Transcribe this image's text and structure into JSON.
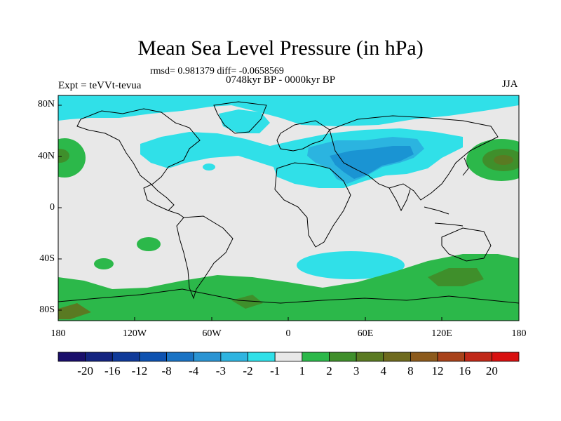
{
  "title": "Mean Sea Level Pressure (in hPa)",
  "stats": "rmsd= 0.981379 diff= -0.0658569",
  "period": "0748kyr BP - 0000kyr BP",
  "experiment": "Expt = teVVt-tevua",
  "season": "JJA",
  "lon_ticks": [
    "180",
    "120W",
    "60W",
    "0",
    "60E",
    "120E",
    "180"
  ],
  "lat_ticks": [
    "80N",
    "40N",
    "0",
    "40S",
    "80S"
  ],
  "colorbar": {
    "labels": [
      "-20",
      "-16",
      "-12",
      "-8",
      "-4",
      "-3",
      "-2",
      "-1",
      "1",
      "2",
      "3",
      "4",
      "8",
      "12",
      "16",
      "20"
    ],
    "colors": [
      "#1a0f6b",
      "#142480",
      "#103a99",
      "#0e52b0",
      "#1a73c4",
      "#2b94d3",
      "#2fb4e0",
      "#30e0e8",
      "#e8e8e8",
      "#2cb84a",
      "#3f8f2b",
      "#5a7a22",
      "#6e6a1e",
      "#8c5a1c",
      "#a8421a",
      "#c02818",
      "#d81010"
    ]
  }
}
